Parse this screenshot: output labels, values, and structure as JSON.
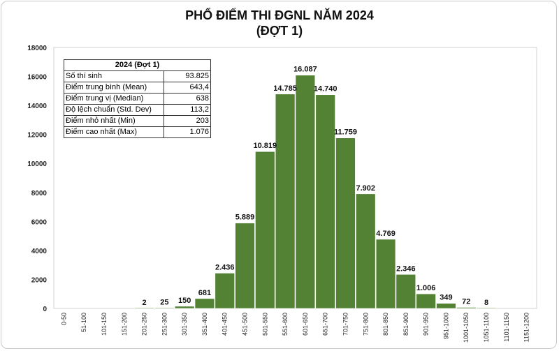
{
  "chart_data": {
    "type": "bar",
    "title": "PHỔ ĐIỂM THI ĐGNL NĂM 2024",
    "subtitle": "(ĐỢT 1)",
    "categories": [
      "0-50",
      "51-100",
      "101-150",
      "151-200",
      "201-250",
      "251-300",
      "301-350",
      "351-400",
      "401-450",
      "451-500",
      "501-550",
      "551-600",
      "601-650",
      "651-700",
      "701-750",
      "751-800",
      "801-850",
      "851-900",
      "901-950",
      "951-1000",
      "1001-1050",
      "1051-1100",
      "1101-1150",
      "1151-1200"
    ],
    "values": [
      0,
      0,
      0,
      0,
      2,
      25,
      150,
      681,
      2436,
      5889,
      10819,
      14785,
      16087,
      14740,
      11759,
      7902,
      4769,
      2346,
      1006,
      349,
      72,
      8,
      0,
      0
    ],
    "data_labels": [
      "",
      "",
      "",
      "",
      "2",
      "25",
      "150",
      "681",
      "2.436",
      "5.889",
      "10.819",
      "14.785",
      "16.087",
      "14.740",
      "11.759",
      "7.902",
      "4.769",
      "2.346",
      "1.006",
      "349",
      "72",
      "8",
      "",
      ""
    ],
    "yticks": [
      "0",
      "2000",
      "4000",
      "6000",
      "8000",
      "10000",
      "12000",
      "14000",
      "16000",
      "18000"
    ],
    "ylim": [
      0,
      18000
    ],
    "xlabel": "",
    "ylabel": "",
    "grid": false,
    "legend": "none",
    "bar_color": "#548235"
  },
  "stats_table": {
    "header": "2024 (Đợt 1)",
    "rows": [
      {
        "label": "Số thí sinh",
        "value": "93.825"
      },
      {
        "label": "Điểm trung bình (Mean)",
        "value": "643,4"
      },
      {
        "label": "Điểm trung vị (Median)",
        "value": "638"
      },
      {
        "label": "Độ lệch chuẩn (Std. Dev)",
        "value": "113,2"
      },
      {
        "label": "Điểm nhỏ nhất (Min)",
        "value": "203"
      },
      {
        "label": "Điểm cao nhất (Max)",
        "value": "1.076"
      }
    ]
  }
}
